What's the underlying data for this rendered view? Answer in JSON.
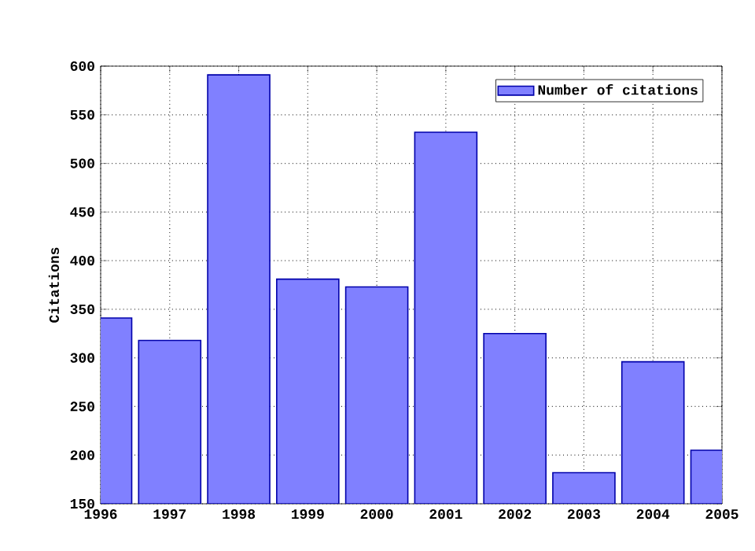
{
  "chart_data": {
    "type": "bar",
    "ylabel": "Citations",
    "x": [
      1996,
      1997,
      1998,
      1999,
      2000,
      2001,
      2002,
      2003,
      2004,
      2005
    ],
    "series": [
      {
        "name": "Number of citations",
        "color": "#8080ff",
        "values": [
          341,
          318,
          591,
          381,
          373,
          532,
          325,
          182,
          296,
          205
        ]
      }
    ],
    "xlim": [
      1996,
      2005
    ],
    "xticks": [
      1996,
      1997,
      1998,
      1999,
      2000,
      2001,
      2002,
      2003,
      2004,
      2005
    ],
    "ylim": [
      150,
      600
    ],
    "yticks": [
      150,
      200,
      250,
      300,
      350,
      400,
      450,
      500,
      550,
      600
    ],
    "grid": true,
    "legend": "top right"
  }
}
